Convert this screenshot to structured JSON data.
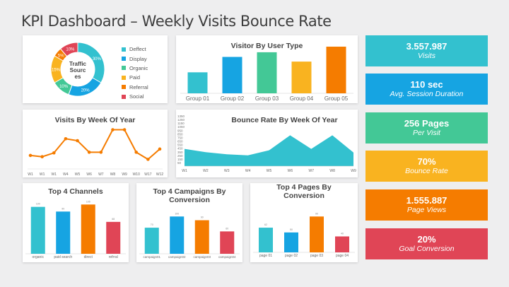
{
  "page": {
    "title": "KPI Dashboard – Weekly Visits Bounce Rate"
  },
  "colors": {
    "teal": "#33c1cf",
    "blue": "#16a4e2",
    "green": "#43c896",
    "yellow": "#f9b320",
    "orange": "#f57c00",
    "red": "#e04556"
  },
  "kpis": [
    {
      "value": "3.557.987",
      "label": "Visits",
      "color": "#33c1cf"
    },
    {
      "value": "110 sec",
      "label": "Avg. Session Duration",
      "color": "#16a4e2"
    },
    {
      "value": "256 Pages",
      "label": "Per Visit",
      "color": "#43c896"
    },
    {
      "value": "70%",
      "label": "Bounce Rate",
      "color": "#f9b320"
    },
    {
      "value": "1.555.887",
      "label": "Page Views",
      "color": "#f57c00"
    },
    {
      "value": "20%",
      "label": "Goal Conversion",
      "color": "#e04556"
    }
  ],
  "chart_data": [
    {
      "id": "traffic",
      "type": "pie",
      "title": "Traffic Sources",
      "categories": [
        "Deffect",
        "Display",
        "Organic",
        "Paid",
        "Referral",
        "Social"
      ],
      "values": [
        30,
        20,
        10,
        15,
        5,
        10
      ],
      "labels": [
        "30%",
        "20%",
        "10%",
        "15%",
        "5%",
        "10%"
      ],
      "colors": [
        "#33c1cf",
        "#16a4e2",
        "#43c896",
        "#f9b320",
        "#f57c00",
        "#e04556"
      ]
    },
    {
      "id": "visitor",
      "type": "bar",
      "title": "Visitor By User Type",
      "categories": [
        "Group 01",
        "Group 02",
        "Group 03",
        "Group 04",
        "Group 05"
      ],
      "values": [
        45,
        78,
        88,
        68,
        100
      ],
      "ylim": [
        0,
        100
      ],
      "colors": [
        "#33c1cf",
        "#16a4e2",
        "#43c896",
        "#f9b320",
        "#f57c00"
      ]
    },
    {
      "id": "visits",
      "type": "line",
      "title": "Visits By Week Of Year",
      "categories": [
        "W1",
        "W1",
        "W1",
        "W4",
        "W5",
        "W6",
        "W7",
        "W8",
        "W9",
        "W10",
        "W17",
        "W12"
      ],
      "values": [
        20,
        16,
        28,
        72,
        66,
        30,
        30,
        100,
        100,
        30,
        8,
        40
      ],
      "ylim": [
        0,
        110
      ]
    },
    {
      "id": "bounce",
      "type": "area",
      "title": "Bounce Rate By Week Of Year",
      "categories": [
        "W1",
        "W2",
        "W3",
        "W4",
        "W5",
        "W6",
        "W7",
        "W8",
        "W9"
      ],
      "values": [
        480,
        390,
        330,
        300,
        440,
        860,
        480,
        860,
        380
      ],
      "yticks": [
        "1350",
        "1250",
        "1150",
        "1050",
        "950",
        "850",
        "750",
        "650",
        "550",
        "450",
        "350",
        "250",
        "150",
        "50"
      ],
      "ylim": [
        0,
        1400
      ]
    },
    {
      "id": "channels",
      "type": "bar",
      "title": "Top 4 Channels",
      "categories": [
        "organic",
        "paid search",
        "direct",
        "refrral"
      ],
      "values": [
        100,
        90,
        105,
        68
      ],
      "ylim": [
        0,
        110
      ],
      "colors": [
        "#33c1cf",
        "#16a4e2",
        "#f57c00",
        "#e04556"
      ]
    },
    {
      "id": "campaigns",
      "type": "bar",
      "title": "Top 4 Campaigns By Conversion",
      "categories": [
        "campaign01",
        "campaign02",
        "campaign03",
        "campaign04"
      ],
      "values": [
        70,
        100,
        90,
        60
      ],
      "ylim": [
        0,
        110
      ],
      "colors": [
        "#33c1cf",
        "#16a4e2",
        "#f57c00",
        "#e04556"
      ]
    },
    {
      "id": "pages",
      "type": "bar",
      "title": "Top 4 Pages By Conversion",
      "categories": [
        "page 01",
        "page 02",
        "page 03",
        "page 04"
      ],
      "values": [
        62,
        50,
        90,
        40
      ],
      "ylim": [
        0,
        110
      ],
      "colors": [
        "#33c1cf",
        "#16a4e2",
        "#f57c00",
        "#e04556"
      ]
    }
  ]
}
